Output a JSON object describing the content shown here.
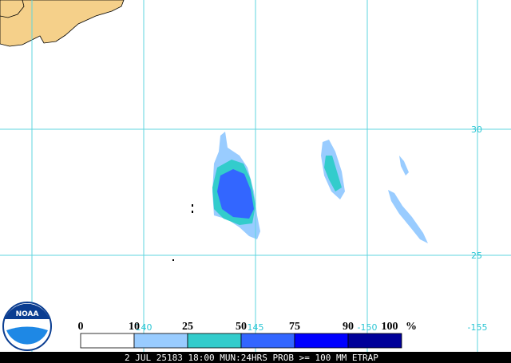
{
  "map": {
    "logo": "NOAA",
    "grid": {
      "lat_labels": [
        "30",
        "25"
      ],
      "lon_labels": [
        "140",
        "145",
        "-150",
        "-155"
      ]
    },
    "legend": {
      "ticks": [
        "0",
        "10",
        "25",
        "50",
        "75",
        "90",
        "100"
      ],
      "unit": "%",
      "colors": [
        "#ffffff",
        "#99ccff",
        "#33cccc",
        "#3366ff",
        "#0000ff",
        "#000099"
      ]
    },
    "caption": "2 JUL 25183 18:00 MUN:24HRS PROB >= 100 MM ETRAP"
  }
}
